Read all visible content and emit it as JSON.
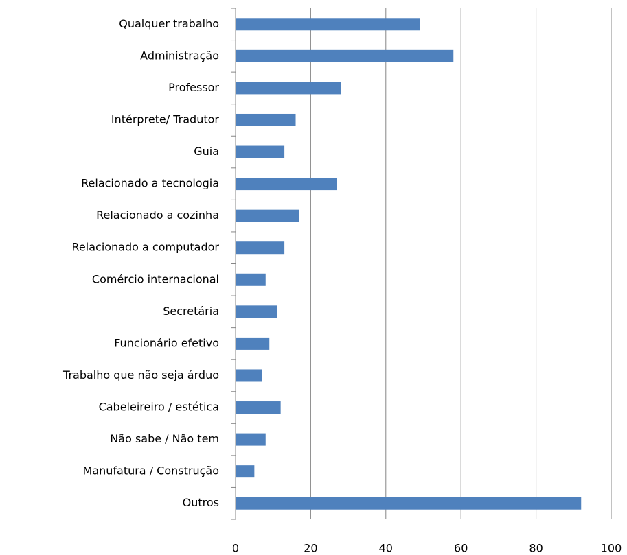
{
  "chart_data": {
    "type": "bar",
    "orientation": "horizontal",
    "categories": [
      "Qualquer trabalho",
      "Administração",
      "Professor",
      "Intérprete/ Tradutor",
      "Guia",
      "Relacionado a tecnologia",
      "Relacionado a cozinha",
      "Relacionado a computador",
      "Comércio internacional",
      "Secretária",
      "Funcionário efetivo",
      "Trabalho que não seja árduo",
      "Cabeleireiro / estética",
      "Não sabe / Não tem",
      "Manufatura / Construção",
      "Outros"
    ],
    "values": [
      49,
      58,
      28,
      16,
      13,
      27,
      17,
      13,
      8,
      11,
      9,
      7,
      12,
      8,
      5,
      92
    ],
    "color": "#4f81bd",
    "xlim": [
      0,
      100
    ],
    "xticks": [
      0,
      20,
      40,
      60,
      80,
      100
    ],
    "grid": true
  }
}
